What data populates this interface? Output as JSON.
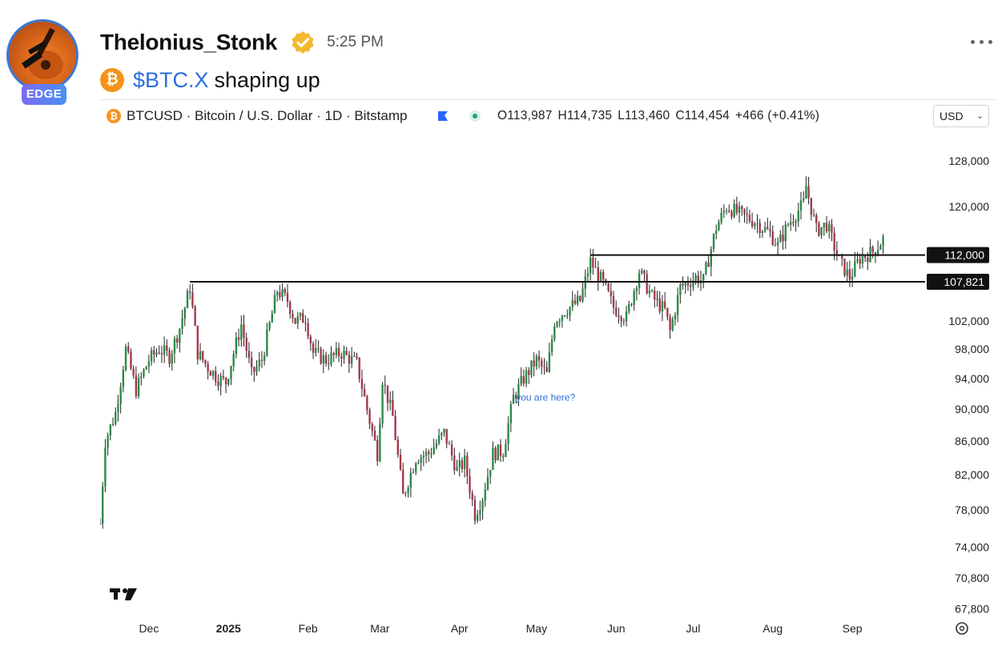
{
  "post": {
    "username": "Thelonius_Stonk",
    "badge": "EDGE",
    "time": "5:25 PM",
    "cashtag": "$BTC.X",
    "text": "shaping up"
  },
  "chart_header": {
    "symbol_title": "BTCUSD · Bitcoin / U.S. Dollar · 1D · Bitstamp",
    "open": "O113,987",
    "high": "H114,735",
    "low": "L113,460",
    "close": "C114,454",
    "change": "+466 (+0.41%)",
    "currency": "USD"
  },
  "colors": {
    "up": "#2b8a4a",
    "down": "#a3394a",
    "level": "#111111",
    "annotation": "#2a6fdb",
    "coin": "#f7931a"
  },
  "chart_data": {
    "type": "candlestick",
    "title": "BTCUSD · Bitcoin / U.S. Dollar · 1D · Bitstamp",
    "y_scale": "log",
    "ylim": [
      66000,
      132000
    ],
    "y_ticks": [
      128000,
      120000,
      102000,
      98000,
      94000,
      90000,
      86000,
      82000,
      78000,
      74000,
      70800,
      67800
    ],
    "y_tick_labels": [
      "128,000",
      "120,000",
      "102,000",
      "98,000",
      "94,000",
      "90,000",
      "86,000",
      "82,000",
      "78,000",
      "74,000",
      "70,800",
      "67,800"
    ],
    "x_range": [
      "2024-11-12",
      "2025-09-20"
    ],
    "x_ticks": [
      {
        "date": "2024-12-01",
        "label": "Dec",
        "bold": false
      },
      {
        "date": "2025-01-01",
        "label": "2025",
        "bold": true
      },
      {
        "date": "2025-02-01",
        "label": "Feb",
        "bold": false
      },
      {
        "date": "2025-03-01",
        "label": "Mar",
        "bold": false
      },
      {
        "date": "2025-04-01",
        "label": "Apr",
        "bold": false
      },
      {
        "date": "2025-05-01",
        "label": "May",
        "bold": false
      },
      {
        "date": "2025-06-01",
        "label": "Jun",
        "bold": false
      },
      {
        "date": "2025-07-01",
        "label": "Jul",
        "bold": false
      },
      {
        "date": "2025-08-01",
        "label": "Aug",
        "bold": false
      },
      {
        "date": "2025-09-01",
        "label": "Sep",
        "bold": false
      }
    ],
    "levels": [
      {
        "value": 112000,
        "label": "112,000",
        "from": "2025-05-22"
      },
      {
        "value": 107821,
        "label": "107,821",
        "from": "2024-12-17"
      }
    ],
    "annotation": {
      "text": "you are here?",
      "date": "2025-04-23",
      "value": 91500
    },
    "close_path": [
      [
        "2024-11-12",
        76500
      ],
      [
        "2024-11-14",
        86000
      ],
      [
        "2024-11-18",
        89500
      ],
      [
        "2024-11-22",
        98000
      ],
      [
        "2024-11-26",
        92500
      ],
      [
        "2024-12-01",
        96500
      ],
      [
        "2024-12-05",
        98000
      ],
      [
        "2024-12-09",
        97000
      ],
      [
        "2024-12-13",
        101000
      ],
      [
        "2024-12-17",
        107000
      ],
      [
        "2024-12-20",
        97500
      ],
      [
        "2024-12-24",
        95500
      ],
      [
        "2024-12-28",
        94000
      ],
      [
        "2024-12-31",
        93500
      ],
      [
        "2025-01-06",
        101500
      ],
      [
        "2025-01-10",
        94500
      ],
      [
        "2025-01-14",
        96500
      ],
      [
        "2025-01-20",
        106500
      ],
      [
        "2025-01-24",
        105000
      ],
      [
        "2025-01-27",
        102000
      ],
      [
        "2025-01-31",
        102500
      ],
      [
        "2025-02-03",
        97500
      ],
      [
        "2025-02-08",
        96500
      ],
      [
        "2025-02-14",
        97500
      ],
      [
        "2025-02-20",
        96000
      ],
      [
        "2025-02-25",
        88500
      ],
      [
        "2025-02-28",
        84500
      ],
      [
        "2025-03-02",
        94000
      ],
      [
        "2025-03-06",
        89000
      ],
      [
        "2025-03-10",
        79500
      ],
      [
        "2025-03-15",
        84000
      ],
      [
        "2025-03-20",
        84500
      ],
      [
        "2025-03-26",
        87000
      ],
      [
        "2025-03-31",
        82500
      ],
      [
        "2025-04-03",
        83500
      ],
      [
        "2025-04-07",
        77500
      ],
      [
        "2025-04-10",
        79500
      ],
      [
        "2025-04-14",
        84500
      ],
      [
        "2025-04-18",
        84800
      ],
      [
        "2025-04-22",
        91500
      ],
      [
        "2025-04-26",
        94000
      ],
      [
        "2025-05-01",
        96500
      ],
      [
        "2025-05-05",
        94500
      ],
      [
        "2025-05-08",
        102000
      ],
      [
        "2025-05-12",
        103500
      ],
      [
        "2025-05-18",
        105000
      ],
      [
        "2025-05-22",
        111000
      ],
      [
        "2025-05-27",
        107500
      ],
      [
        "2025-05-31",
        104000
      ],
      [
        "2025-06-05",
        102500
      ],
      [
        "2025-06-10",
        109500
      ],
      [
        "2025-06-15",
        105500
      ],
      [
        "2025-06-20",
        103500
      ],
      [
        "2025-06-22",
        100500
      ],
      [
        "2025-06-26",
        107000
      ],
      [
        "2025-07-02",
        108500
      ],
      [
        "2025-07-05",
        108000
      ],
      [
        "2025-07-10",
        116500
      ],
      [
        "2025-07-14",
        120000
      ],
      [
        "2025-07-20",
        118500
      ],
      [
        "2025-07-25",
        117500
      ],
      [
        "2025-07-31",
        115500
      ],
      [
        "2025-08-03",
        113500
      ],
      [
        "2025-08-07",
        117000
      ],
      [
        "2025-08-13",
        120500
      ],
      [
        "2025-08-14",
        123500
      ],
      [
        "2025-08-18",
        116000
      ],
      [
        "2025-08-22",
        117000
      ],
      [
        "2025-08-27",
        111000
      ],
      [
        "2025-08-31",
        108500
      ],
      [
        "2025-09-04",
        111500
      ],
      [
        "2025-09-09",
        112500
      ],
      [
        "2025-09-13",
        114500
      ]
    ]
  }
}
